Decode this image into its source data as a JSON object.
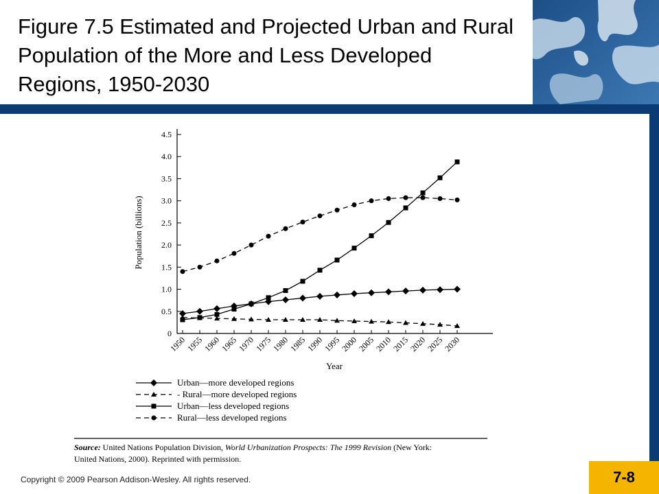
{
  "slide": {
    "title": "Figure 7.5 Estimated and Projected Urban and Rural Population of the More and Less Developed Regions, 1950-2030",
    "copyright": "Copyright © 2009 Pearson Addison-Wesley. All rights reserved.",
    "slide_number": "7-8",
    "source_label": "Source:",
    "source_text_1": " United Nations Population Division, ",
    "source_italic": "World Urbanization Prospects: The 1999 Revision",
    "source_text_2": " (New York:",
    "source_line2": "United Nations, 2000). Reprinted with permission.",
    "colors": {
      "band": "#0b3b73",
      "slide_number_bg": "#f5b400"
    }
  },
  "chart_data": {
    "type": "line",
    "xlabel": "Year",
    "ylabel": "Population (billions)",
    "ylim": [
      0,
      4.5
    ],
    "xlim": [
      1950,
      2030
    ],
    "y_ticks": [
      "0",
      "0.5",
      "1.0",
      "1.5",
      "2.0",
      "2.5",
      "3.0",
      "3.5",
      "4.0",
      "4.5"
    ],
    "x_ticks": [
      "1950",
      "1955",
      "1960",
      "1965",
      "1970",
      "1975",
      "1980",
      "1985",
      "1990",
      "1995",
      "2000",
      "2005",
      "2010",
      "2015",
      "2020",
      "2025",
      "2030"
    ],
    "x": [
      1950,
      1955,
      1960,
      1965,
      1970,
      1975,
      1980,
      1985,
      1990,
      1995,
      2000,
      2005,
      2010,
      2015,
      2020,
      2025,
      2030
    ],
    "legend_position": "below",
    "series": [
      {
        "name": "Urban—more developed regions",
        "marker": "diamond",
        "dash": "solid",
        "values": [
          0.45,
          0.5,
          0.56,
          0.62,
          0.67,
          0.72,
          0.76,
          0.8,
          0.84,
          0.87,
          0.9,
          0.92,
          0.94,
          0.96,
          0.98,
          0.99,
          1.0
        ]
      },
      {
        "name": "- Rural—more developed regions",
        "marker": "triangle",
        "dash": "dashed",
        "values": [
          0.36,
          0.35,
          0.34,
          0.33,
          0.32,
          0.31,
          0.31,
          0.31,
          0.31,
          0.29,
          0.28,
          0.27,
          0.26,
          0.24,
          0.22,
          0.2,
          0.17
        ]
      },
      {
        "name": "Urban—less developed regions",
        "marker": "square",
        "dash": "solid",
        "values": [
          0.31,
          0.36,
          0.43,
          0.55,
          0.67,
          0.81,
          0.97,
          1.18,
          1.43,
          1.66,
          1.93,
          2.21,
          2.51,
          2.84,
          3.18,
          3.52,
          3.88
        ]
      },
      {
        "name": "Rural—less developed regions",
        "marker": "circle",
        "dash": "dashed",
        "values": [
          1.4,
          1.5,
          1.64,
          1.81,
          2.0,
          2.2,
          2.37,
          2.52,
          2.66,
          2.79,
          2.91,
          3.0,
          3.05,
          3.07,
          3.07,
          3.05,
          3.02
        ]
      }
    ]
  }
}
